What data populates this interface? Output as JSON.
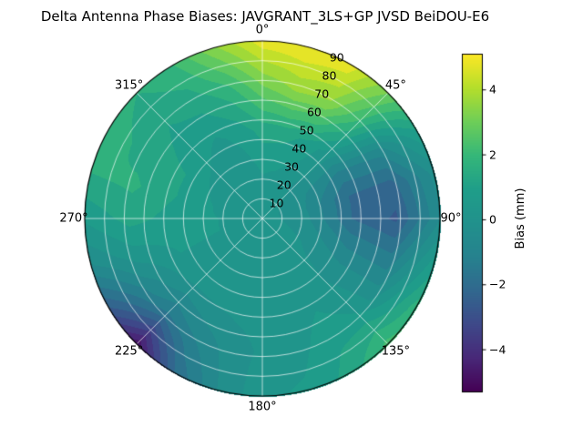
{
  "title": "Delta Antenna Phase Biases: JAVGRANT_3LS+GP JVSD BeiDOU-E6",
  "chart_data": {
    "type": "heatmap",
    "projection": "polar",
    "title": "Delta Antenna Phase Biases: JAVGRANT_3LS+GP JVSD BeiDOU-E6",
    "azimuth_tick_deg": [
      0,
      45,
      90,
      135,
      180,
      225,
      270,
      315
    ],
    "azimuth_tick_labels": [
      "0°",
      "45°",
      "90°",
      "135°",
      "180°",
      "225°",
      "270°",
      "315°"
    ],
    "radial_tick_labels": [
      "10",
      "20",
      "30",
      "40",
      "50",
      "60",
      "70",
      "80",
      "90"
    ],
    "radial_max": 90,
    "radial_label_angle_deg": 22.5,
    "grid": {
      "show": true,
      "color": "#ffffff",
      "opacity": 0.75
    },
    "contour_level_step": 0.5,
    "colorbar": {
      "label": "Bias (mm)",
      "ticks": [
        -4,
        -2,
        0,
        2,
        4
      ],
      "vmin": -5.3,
      "vmax": 5.1,
      "colormap": "viridis",
      "colormap_stops": [
        [
          0.0,
          "#440154"
        ],
        [
          0.1,
          "#482878"
        ],
        [
          0.2,
          "#3e4989"
        ],
        [
          0.3,
          "#31688e"
        ],
        [
          0.4,
          "#26828e"
        ],
        [
          0.5,
          "#21918c"
        ],
        [
          0.6,
          "#1f9e89"
        ],
        [
          0.7,
          "#35b779"
        ],
        [
          0.8,
          "#6ece58"
        ],
        [
          0.9,
          "#b5de2b"
        ],
        [
          1.0,
          "#fde725"
        ]
      ]
    },
    "bias_grid_mm": {
      "azimuths_deg": [
        0,
        15,
        30,
        45,
        60,
        75,
        90,
        105,
        120,
        135,
        150,
        165,
        180,
        195,
        210,
        225,
        240,
        255,
        270,
        285,
        300,
        315,
        330,
        345
      ],
      "radial_nodes_fraction": [
        0.0,
        0.25,
        0.5,
        0.75,
        1.0
      ],
      "values": [
        [
          0.3,
          0.3,
          0.3,
          0.3,
          0.3,
          0.3,
          0.3,
          0.3,
          0.3,
          0.3,
          0.3,
          0.3,
          0.3,
          0.3,
          0.3,
          0.3,
          0.3,
          0.3,
          0.3,
          0.3,
          0.3,
          0.3,
          0.3,
          0.3
        ],
        [
          0.5,
          0.4,
          0.2,
          -0.1,
          -0.4,
          -0.5,
          -0.4,
          -0.2,
          0.0,
          0.1,
          0.2,
          0.1,
          0.0,
          0.1,
          0.2,
          0.3,
          0.4,
          0.5,
          0.5,
          0.4,
          0.2,
          0.1,
          0.0,
          0.2
        ],
        [
          1.2,
          1.2,
          0.9,
          0.2,
          -1.2,
          -2.0,
          -2.0,
          -1.2,
          -0.5,
          0.0,
          0.3,
          0.2,
          0.2,
          0.2,
          0.2,
          0.2,
          0.4,
          0.6,
          0.8,
          1.0,
          1.0,
          0.7,
          0.4,
          0.7
        ],
        [
          3.0,
          3.6,
          3.4,
          1.8,
          -0.8,
          -2.2,
          -2.6,
          -1.5,
          -0.5,
          0.5,
          0.8,
          0.3,
          0.1,
          -0.3,
          -0.9,
          -1.5,
          -0.8,
          0.3,
          1.2,
          1.6,
          1.3,
          1.0,
          1.2,
          1.8
        ],
        [
          4.8,
          5.0,
          4.8,
          3.0,
          1.0,
          -0.3,
          -0.5,
          0.8,
          1.8,
          2.2,
          1.2,
          0.6,
          0.4,
          -0.5,
          -2.0,
          -4.9,
          -2.5,
          -0.5,
          0.6,
          1.5,
          1.8,
          1.5,
          2.0,
          3.5
        ]
      ]
    }
  }
}
